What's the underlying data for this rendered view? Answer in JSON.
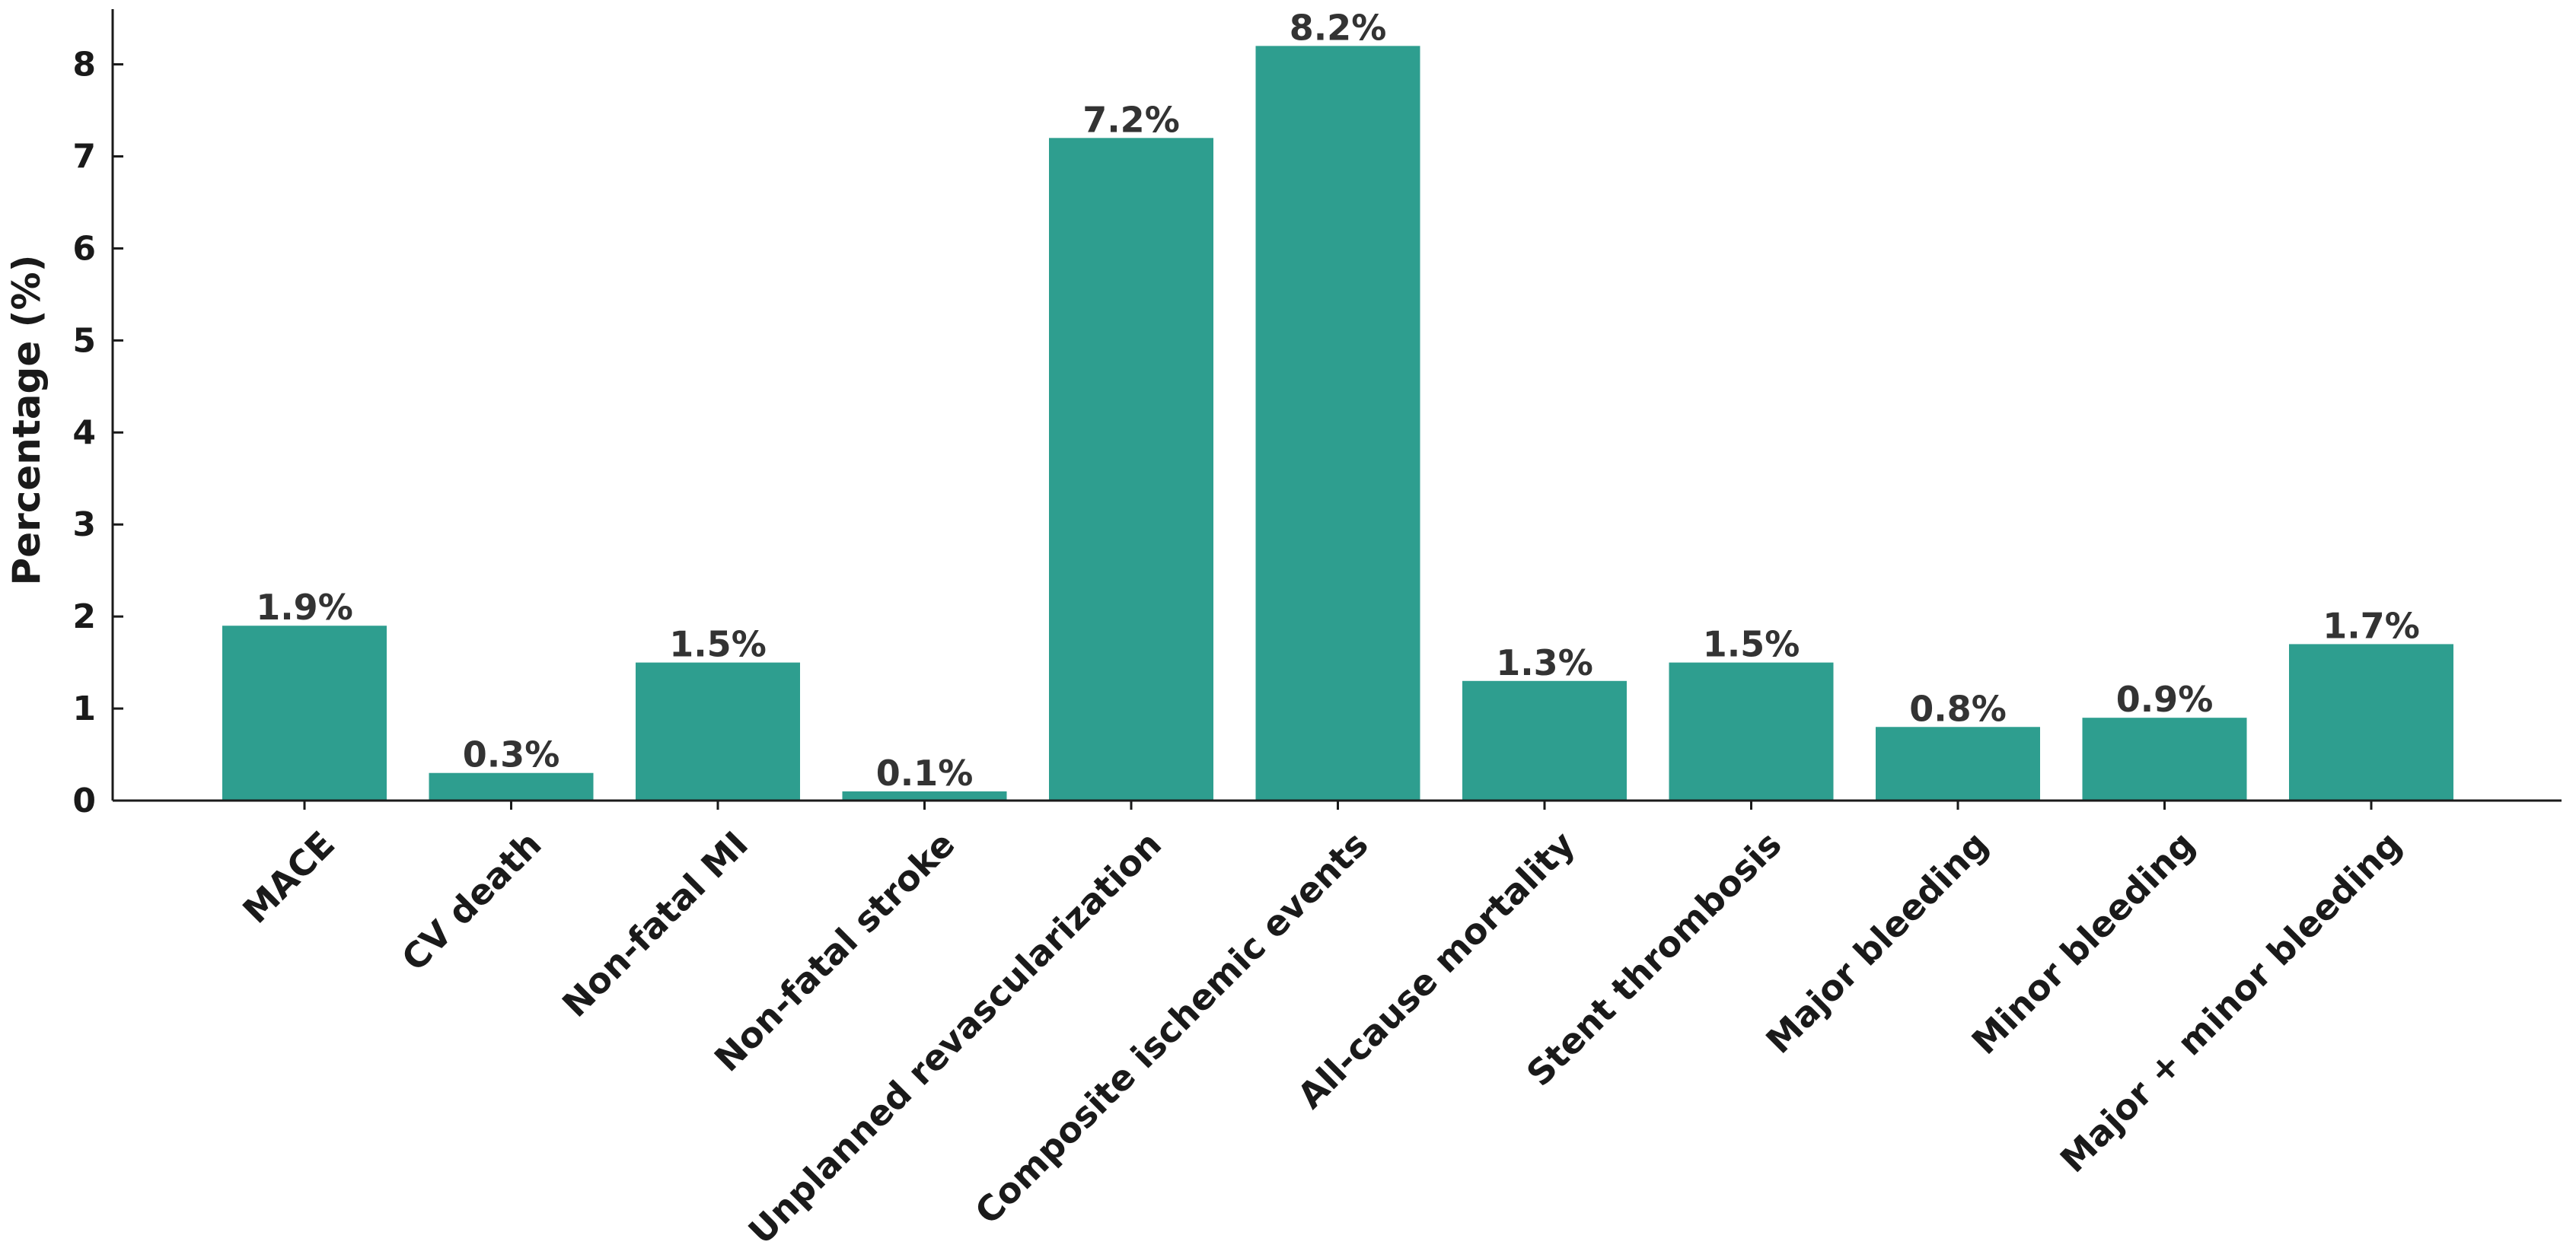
{
  "chart_data": {
    "type": "bar",
    "title": "",
    "xlabel": "",
    "ylabel": "Percentage (%)",
    "ylim": [
      0,
      8.6
    ],
    "yticks": [
      0,
      1,
      2,
      3,
      4,
      5,
      6,
      7,
      8
    ],
    "grid": false,
    "bar_color": "#2e9e8f",
    "categories": [
      "MACE",
      "CV death",
      "Non-fatal MI",
      "Non-fatal stroke",
      "Unplanned revascularization",
      "Composite ischemic events",
      "All-cause mortality",
      "Stent thrombosis",
      "Major bleeding",
      "Minor bleeding",
      "Major + minor bleeding"
    ],
    "values": [
      1.9,
      0.3,
      1.5,
      0.1,
      7.2,
      8.2,
      1.3,
      1.5,
      0.8,
      0.9,
      1.7
    ],
    "data_labels": [
      "1.9%",
      "0.3%",
      "1.5%",
      "0.1%",
      "7.2%",
      "8.2%",
      "1.3%",
      "1.5%",
      "0.8%",
      "0.9%",
      "1.7%"
    ]
  }
}
